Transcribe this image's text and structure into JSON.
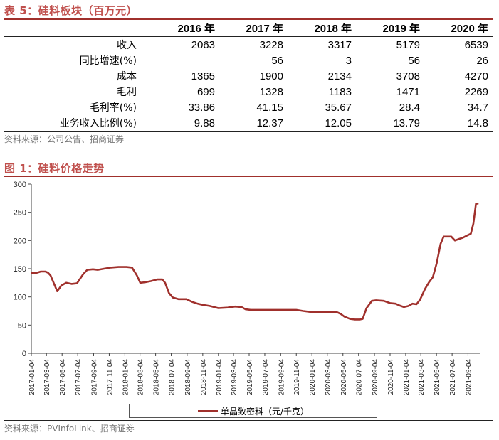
{
  "table": {
    "title": "表 5：硅料板块（百万元）",
    "headers": [
      "",
      "2016 年",
      "2017 年",
      "2018 年",
      "2019 年",
      "2020 年"
    ],
    "rows": [
      {
        "label": "收入",
        "values": [
          "2063",
          "3228",
          "3317",
          "5179",
          "6539"
        ]
      },
      {
        "label": "同比增速(%)",
        "values": [
          "",
          "56",
          "3",
          "56",
          "26"
        ]
      },
      {
        "label": "成本",
        "values": [
          "1365",
          "1900",
          "2134",
          "3708",
          "4270"
        ]
      },
      {
        "label": "毛利",
        "values": [
          "699",
          "1328",
          "1183",
          "1471",
          "2269"
        ]
      },
      {
        "label": "毛利率(%)",
        "values": [
          "33.86",
          "41.15",
          "35.67",
          "28.4",
          "34.7"
        ]
      },
      {
        "label": "业务收入比例(%)",
        "values": [
          "9.88",
          "12.37",
          "12.05",
          "13.79",
          "14.8"
        ]
      }
    ],
    "source": "资料来源：公司公告、招商证券"
  },
  "figure": {
    "title": "图 1：硅料价格走势",
    "source": "资料来源：PVInfoLink、招商证券"
  },
  "chart_data": {
    "type": "line",
    "title": "",
    "xlabel": "",
    "ylabel": "",
    "ylim": [
      0,
      300
    ],
    "yticks": [
      0,
      50,
      100,
      150,
      200,
      250,
      300
    ],
    "grid": false,
    "legend": "bottom",
    "color": "#a0302c",
    "x_tick_labels": [
      "2017-01-04",
      "2017-03-04",
      "2017-05-04",
      "2017-07-04",
      "2017-09-04",
      "2017-11-04",
      "2018-01-04",
      "2018-03-04",
      "2018-05-04",
      "2018-07-04",
      "2018-09-04",
      "2018-11-04",
      "2019-01-04",
      "2019-03-04",
      "2019-05-04",
      "2019-07-04",
      "2019-09-04",
      "2019-11-04",
      "2020-01-04",
      "2020-03-04",
      "2020-05-04",
      "2020-07-04",
      "2020-09-04",
      "2020-11-04",
      "2021-01-04",
      "2021-03-04",
      "2021-05-04",
      "2021-07-04",
      "2021-09-04"
    ],
    "series": [
      {
        "name": "单晶致密料（元/千克）",
        "x": [
          "2017-01-04",
          "2017-01-20",
          "2017-02-10",
          "2017-02-28",
          "2017-03-10",
          "2017-03-20",
          "2017-04-01",
          "2017-04-15",
          "2017-05-01",
          "2017-05-20",
          "2017-06-10",
          "2017-07-01",
          "2017-07-25",
          "2017-08-10",
          "2017-09-01",
          "2017-09-20",
          "2017-10-15",
          "2017-11-10",
          "2017-12-10",
          "2018-01-10",
          "2018-02-01",
          "2018-02-20",
          "2018-03-05",
          "2018-03-25",
          "2018-04-15",
          "2018-05-10",
          "2018-05-30",
          "2018-06-10",
          "2018-06-25",
          "2018-07-10",
          "2018-08-01",
          "2018-09-01",
          "2018-09-25",
          "2018-10-15",
          "2018-11-04",
          "2018-12-01",
          "2019-01-04",
          "2019-02-10",
          "2019-03-10",
          "2019-04-04",
          "2019-04-20",
          "2019-05-10",
          "2019-06-10",
          "2019-07-10",
          "2019-08-10",
          "2019-09-10",
          "2019-10-10",
          "2019-11-04",
          "2019-12-01",
          "2020-01-04",
          "2020-02-10",
          "2020-03-10",
          "2020-04-10",
          "2020-04-25",
          "2020-05-10",
          "2020-06-01",
          "2020-06-20",
          "2020-07-10",
          "2020-07-20",
          "2020-08-04",
          "2020-08-25",
          "2020-09-10",
          "2020-10-10",
          "2020-11-04",
          "2020-11-25",
          "2020-12-10",
          "2020-12-28",
          "2021-01-15",
          "2021-01-30",
          "2021-02-15",
          "2021-03-01",
          "2021-03-20",
          "2021-04-05",
          "2021-04-20",
          "2021-05-05",
          "2021-05-20",
          "2021-06-01",
          "2021-06-15",
          "2021-07-01",
          "2021-07-15",
          "2021-08-01",
          "2021-08-15",
          "2021-09-01",
          "2021-09-15",
          "2021-09-25",
          "2021-10-05",
          "2021-10-15"
        ],
        "values": [
          142,
          142,
          145,
          145,
          143,
          138,
          125,
          110,
          120,
          125,
          123,
          124,
          140,
          148,
          149,
          148,
          150,
          152,
          153,
          153,
          152,
          138,
          125,
          126,
          128,
          131,
          131,
          125,
          107,
          99,
          96,
          96,
          91,
          88,
          86,
          84,
          80,
          81,
          83,
          82,
          78,
          77,
          77,
          77,
          77,
          77,
          77,
          77,
          75,
          73,
          73,
          73,
          73,
          70,
          65,
          61,
          60,
          60,
          61,
          80,
          93,
          94,
          93,
          89,
          88,
          85,
          82,
          84,
          88,
          87,
          95,
          114,
          126,
          135,
          160,
          194,
          207,
          207,
          207,
          200,
          203,
          205,
          209,
          212,
          230,
          265,
          266
        ]
      }
    ]
  }
}
